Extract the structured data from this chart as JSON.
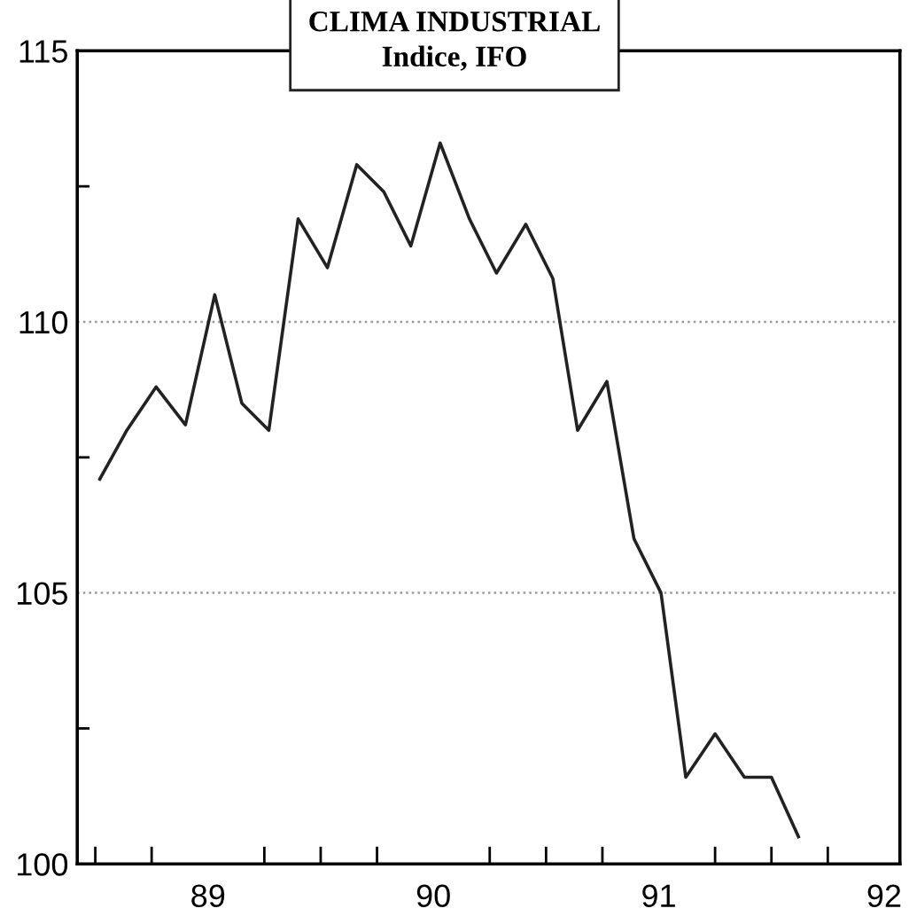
{
  "chart_data": {
    "type": "line",
    "title": "CLIMA INDUSTRIAL",
    "subtitle": "Indice, IFO",
    "x": [
      88.52,
      88.64,
      88.77,
      88.9,
      89.03,
      89.15,
      89.27,
      89.4,
      89.53,
      89.66,
      89.78,
      89.9,
      90.03,
      90.16,
      90.28,
      90.41,
      90.53,
      90.64,
      90.77,
      90.89,
      91.01,
      91.12,
      91.25,
      91.38,
      91.5,
      91.62
    ],
    "series": [
      {
        "color": "#222222",
        "values": [
          107.1,
          108.0,
          108.8,
          108.1,
          110.5,
          108.5,
          108.0,
          111.9,
          111.0,
          112.9,
          112.4,
          111.4,
          113.3,
          111.9,
          110.9,
          111.8,
          110.8,
          108.0,
          108.9,
          106.0,
          105.0,
          101.6,
          102.4,
          101.6,
          101.6,
          100.5
        ]
      }
    ],
    "xlim": [
      88.42,
      92.07
    ],
    "ylim": [
      100,
      115
    ],
    "xticks": [
      {
        "value": 88.5,
        "label": null
      },
      {
        "value": 88.75,
        "label": null
      },
      89,
      {
        "value": 89.25,
        "label": null
      },
      {
        "value": 89.5,
        "label": null
      },
      {
        "value": 89.75,
        "label": null
      },
      90,
      {
        "value": 90.25,
        "label": null
      },
      {
        "value": 90.5,
        "label": null
      },
      {
        "value": 90.75,
        "label": null
      },
      91,
      {
        "value": 91.25,
        "label": null
      },
      {
        "value": 91.5,
        "label": null
      },
      {
        "value": 91.75,
        "label": null
      },
      92
    ],
    "yticks": [
      100,
      {
        "value": 102.5,
        "label": null
      },
      105,
      {
        "value": 107.5,
        "label": null
      },
      110,
      {
        "value": 112.5,
        "label": null
      },
      115
    ],
    "grid": "y",
    "marker": "none",
    "line_style": "solid"
  }
}
